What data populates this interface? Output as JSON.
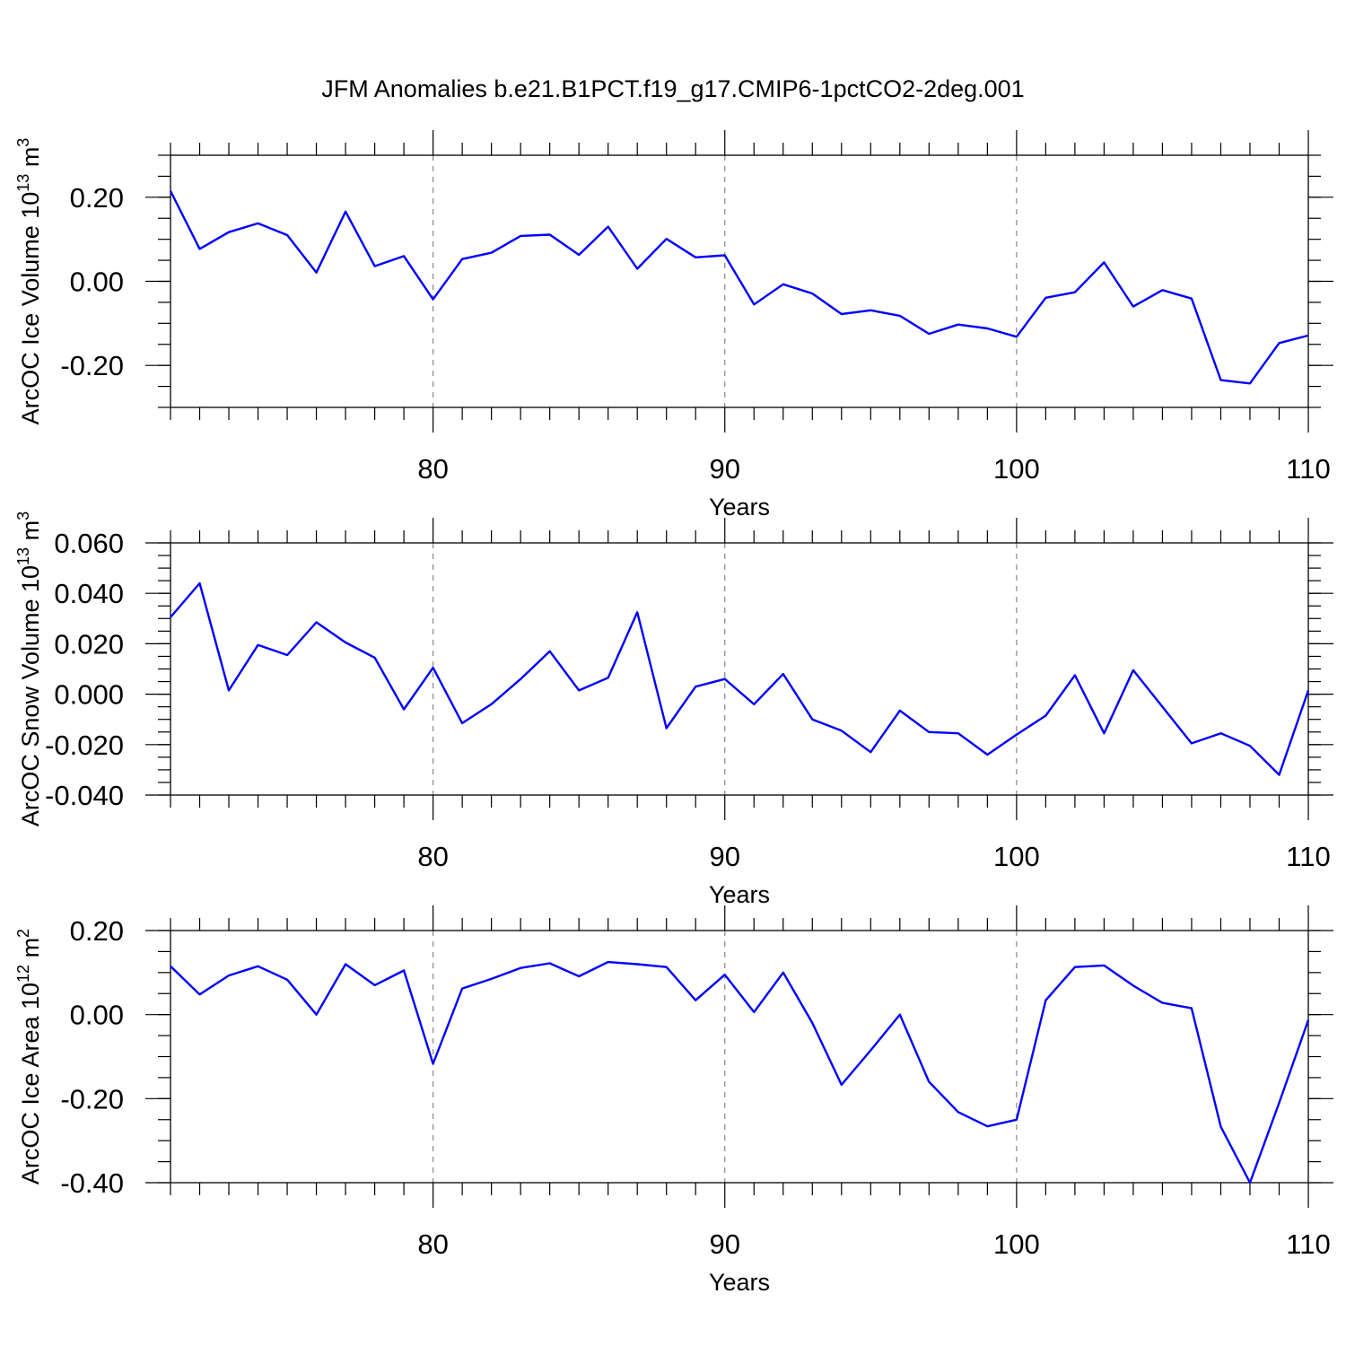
{
  "title": "JFM Anomalies b.e21.B1PCT.f19_g17.CMIP6-1pctCO2-2deg.001",
  "colors": {
    "line": "#0000ff",
    "grid": "#888888",
    "axis": "#000000"
  },
  "chart_data": [
    {
      "type": "line",
      "ylabel": "ArcOC Ice Volume",
      "ylabel_unit": "10",
      "ylabel_exp": "13",
      "ylabel_unit2": " m",
      "ylabel_exp2": "3",
      "xlabel": "Years",
      "xlim": [
        71,
        110
      ],
      "ylim": [
        -0.3,
        0.3
      ],
      "x_ticks": [
        80,
        90,
        100,
        110
      ],
      "x_tick_labels": [
        "80",
        "90",
        "100",
        "110"
      ],
      "y_ticks": [
        0.2,
        0.0,
        -0.2
      ],
      "y_tick_labels": [
        "0.20",
        "0.00",
        "-0.20"
      ],
      "y_minor_step": 0.05,
      "grid_x": [
        80,
        90,
        100
      ],
      "x": [
        71,
        72,
        73,
        74,
        75,
        76,
        77,
        78,
        79,
        80,
        81,
        82,
        83,
        84,
        85,
        86,
        87,
        88,
        89,
        90,
        91,
        92,
        93,
        94,
        95,
        96,
        97,
        98,
        99,
        100,
        101,
        102,
        103,
        104,
        105,
        106,
        107,
        108,
        109,
        110
      ],
      "values": [
        0.215,
        0.077,
        0.117,
        0.138,
        0.11,
        0.021,
        0.166,
        0.036,
        0.06,
        -0.043,
        0.053,
        0.068,
        0.108,
        0.111,
        0.063,
        0.13,
        0.03,
        0.101,
        0.057,
        0.062,
        -0.055,
        -0.007,
        -0.029,
        -0.078,
        -0.069,
        -0.082,
        -0.125,
        -0.103,
        -0.112,
        -0.132,
        -0.039,
        -0.026,
        0.045,
        -0.06,
        -0.021,
        -0.041,
        -0.235,
        -0.243,
        -0.147,
        -0.129
      ]
    },
    {
      "type": "line",
      "ylabel": "ArcOC Snow Volume",
      "ylabel_unit": "10",
      "ylabel_exp": "13",
      "ylabel_unit2": " m",
      "ylabel_exp2": "3",
      "xlabel": "Years",
      "xlim": [
        71,
        110
      ],
      "ylim": [
        -0.04,
        0.06
      ],
      "x_ticks": [
        80,
        90,
        100,
        110
      ],
      "x_tick_labels": [
        "80",
        "90",
        "100",
        "110"
      ],
      "y_ticks": [
        0.06,
        0.04,
        0.02,
        0.0,
        -0.02,
        -0.04
      ],
      "y_tick_labels": [
        "0.060",
        "0.040",
        "0.020",
        "0.000",
        "-0.020",
        "-0.040"
      ],
      "y_minor_step": 0.005,
      "grid_x": [
        80,
        90,
        100
      ],
      "x": [
        71,
        72,
        73,
        74,
        75,
        76,
        77,
        78,
        79,
        80,
        81,
        82,
        83,
        84,
        85,
        86,
        87,
        88,
        89,
        90,
        91,
        92,
        93,
        94,
        95,
        96,
        97,
        98,
        99,
        100,
        101,
        102,
        103,
        104,
        105,
        106,
        107,
        108,
        109,
        110
      ],
      "values": [
        0.0305,
        0.044,
        0.0015,
        0.0195,
        0.0155,
        0.0285,
        0.0205,
        0.0145,
        -0.006,
        0.0105,
        -0.0115,
        -0.004,
        0.006,
        0.017,
        0.0015,
        0.0065,
        0.0325,
        -0.0135,
        0.003,
        0.006,
        -0.004,
        0.008,
        -0.01,
        -0.0145,
        -0.023,
        -0.0065,
        -0.015,
        -0.0155,
        -0.024,
        -0.016,
        -0.0085,
        0.0075,
        -0.0155,
        0.0095,
        -0.005,
        -0.0195,
        -0.0155,
        -0.0205,
        -0.032,
        0.0015
      ]
    },
    {
      "type": "line",
      "ylabel": "ArcOC Ice Area",
      "ylabel_unit": "10",
      "ylabel_exp": "12",
      "ylabel_unit2": " m",
      "ylabel_exp2": "2",
      "xlabel": "Years",
      "xlim": [
        71,
        110
      ],
      "ylim": [
        -0.4,
        0.2
      ],
      "x_ticks": [
        80,
        90,
        100,
        110
      ],
      "x_tick_labels": [
        "80",
        "90",
        "100",
        "110"
      ],
      "y_ticks": [
        0.2,
        0.0,
        -0.2,
        -0.4
      ],
      "y_tick_labels": [
        "0.20",
        "0.00",
        "-0.20",
        "-0.40"
      ],
      "y_minor_step": 0.05,
      "grid_x": [
        80,
        90,
        100
      ],
      "x": [
        71,
        72,
        73,
        74,
        75,
        76,
        77,
        78,
        79,
        80,
        81,
        82,
        83,
        84,
        85,
        86,
        87,
        88,
        89,
        90,
        91,
        92,
        93,
        94,
        95,
        96,
        97,
        98,
        99,
        100,
        101,
        102,
        103,
        104,
        105,
        106,
        107,
        108,
        109,
        110
      ],
      "values": [
        0.115,
        0.048,
        0.093,
        0.115,
        0.083,
        0.0,
        0.12,
        0.07,
        0.105,
        -0.117,
        0.062,
        0.085,
        0.111,
        0.122,
        0.091,
        0.125,
        0.12,
        0.113,
        0.034,
        0.095,
        0.006,
        0.1,
        -0.02,
        -0.167,
        -0.085,
        0.0,
        -0.16,
        -0.232,
        -0.266,
        -0.25,
        0.034,
        0.113,
        0.117,
        0.069,
        0.028,
        0.015,
        -0.267,
        -0.4,
        -0.21,
        -0.013
      ]
    }
  ]
}
